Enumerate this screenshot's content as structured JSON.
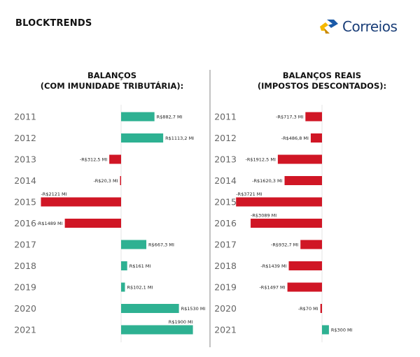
{
  "brand": "BLOCKTRENDS",
  "logo_text": "Correios",
  "colors": {
    "positive": "#2eb192",
    "negative": "#d01625",
    "year": "#666666",
    "axis": "#e6e6e6",
    "divider": "#999999"
  },
  "chart_data": [
    {
      "type": "bar",
      "orientation": "horizontal",
      "title": [
        "BALANÇOS",
        "(COM IMUNIDADE TRIBUTÁRIA):"
      ],
      "categories": [
        "2011",
        "2012",
        "2013",
        "2014",
        "2015",
        "2016",
        "2017",
        "2018",
        "2019",
        "2020",
        "2021"
      ],
      "values": [
        882.7,
        1113.2,
        -312.5,
        -20.3,
        -2121,
        -1489,
        667.3,
        161,
        102.1,
        1530,
        1900
      ],
      "labels": [
        "R$882,7 MI",
        "R$1113,2 MI",
        "-R$312,5 MI",
        "-R$20,3 MI",
        "-R$2121 MI",
        "-R$1489 MI",
        "R$667,3 MI",
        "R$161 MI",
        "R$102,1 MI",
        "R$1530 MI",
        "R$1900 MI"
      ],
      "unit": "R$ milhões"
    },
    {
      "type": "bar",
      "orientation": "horizontal",
      "title": [
        "BALANÇOS REAIS",
        "(IMPOSTOS DESCONTADOS):"
      ],
      "categories": [
        "2011",
        "2012",
        "2013",
        "2014",
        "2015",
        "2016",
        "2017",
        "2018",
        "2019",
        "2020",
        "2021"
      ],
      "values": [
        -717.3,
        -486.8,
        -1912.5,
        -1620.3,
        -3721,
        -3089,
        -932.7,
        -1439,
        -1497,
        -70,
        300
      ],
      "labels": [
        "-R$717,3 MI",
        "-R$486,8 MI",
        "-R$1912,5 MI",
        "-R$1620,3 MI",
        "-R$3721 MI",
        "-R$3089 MI",
        "-R$932,7 MI",
        "-R$1439 MI",
        "-R$1497 MI",
        "-R$70 MI",
        "R$300 MI"
      ],
      "unit": "R$ milhões"
    }
  ]
}
